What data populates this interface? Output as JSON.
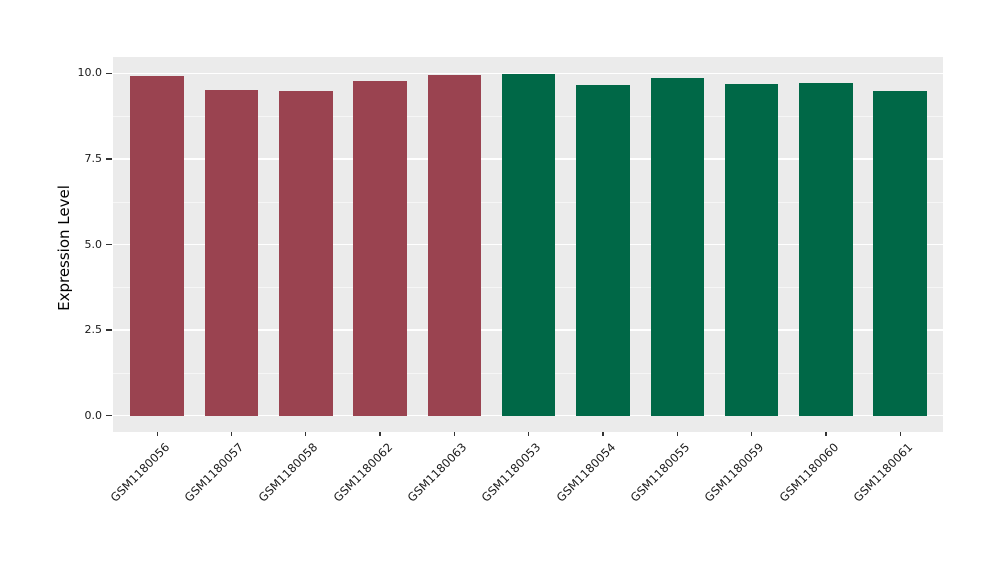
{
  "chart_data": {
    "type": "bar",
    "title": "",
    "xlabel": "",
    "ylabel": "Expression Level",
    "categories": [
      "GSM1180056",
      "GSM1180057",
      "GSM1180058",
      "GSM1180062",
      "GSM1180063",
      "GSM1180053",
      "GSM1180054",
      "GSM1180055",
      "GSM1180059",
      "GSM1180060",
      "GSM1180061"
    ],
    "values": [
      9.93,
      9.51,
      9.48,
      9.77,
      9.94,
      9.98,
      9.65,
      9.85,
      9.69,
      9.72,
      9.49
    ],
    "bar_colors": [
      "#9A4350",
      "#9A4350",
      "#9A4350",
      "#9A4350",
      "#9A4350",
      "#006847",
      "#006847",
      "#006847",
      "#006847",
      "#006847",
      "#006847"
    ],
    "group_colors": {
      "maroon_group": "#9A4350",
      "green_group": "#006847"
    },
    "ylim": [
      0,
      10
    ],
    "yticks": [
      0.0,
      2.5,
      5.0,
      7.5,
      10.0
    ],
    "ytick_labels": [
      "0.0",
      "2.5",
      "5.0",
      "7.5",
      "10.0"
    ],
    "yticks_minor": [
      1.25,
      3.75,
      6.25,
      8.75
    ],
    "xtick_rotation_deg": 45,
    "grid": "major and minor horizontal gridlines, white on gray panel",
    "legend": "none",
    "panel_background": "#EBEBEB",
    "gridline_color": "#FFFFFF",
    "tick_text_color": "#1A1A1A"
  }
}
